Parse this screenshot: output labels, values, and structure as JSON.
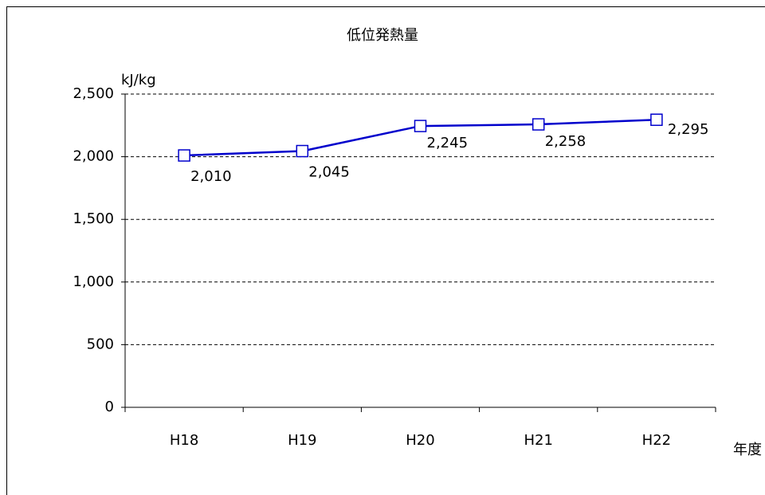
{
  "chart_data": {
    "type": "line",
    "title": "低位発熱量",
    "y_label": "kJ/kg",
    "x_label": "年度",
    "categories": [
      "H18",
      "H19",
      "H20",
      "H21",
      "H22"
    ],
    "series": [
      {
        "name": "低位発熱量",
        "color": "#0000cc",
        "values": [
          2010,
          2045,
          2245,
          2258,
          2295
        ],
        "value_labels": [
          "2,010",
          "2,045",
          "2,245",
          "2,258",
          "2,295"
        ]
      }
    ],
    "ylim": [
      0,
      2500
    ],
    "yticks": [
      0,
      500,
      {
        "value": 1000,
        "label": "1,000"
      },
      {
        "value": 1500,
        "label": "1,500"
      },
      {
        "value": 2000,
        "label": "2,000"
      },
      {
        "value": 2500,
        "label": "2,500"
      }
    ],
    "grid": true
  }
}
